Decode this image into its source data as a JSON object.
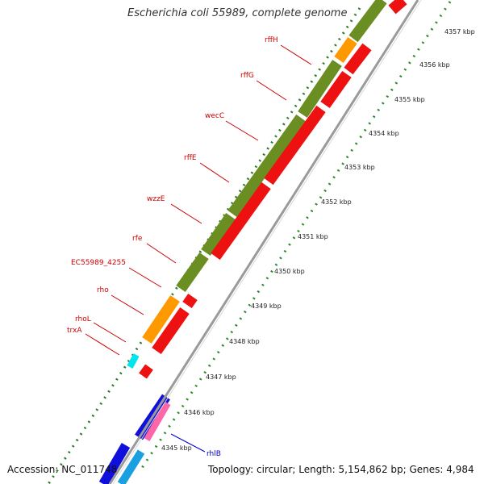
{
  "map": {
    "title": "Escherichia coli 55989, complete genome",
    "accession": "Accession: NC_011748",
    "summary": "Topology: circular; Length: 5,154,862 bp; Genes: 4,984"
  },
  "ruler": {
    "ticks": [
      {
        "label": "4357 kbp",
        "at": 0
      },
      {
        "label": "4356 kbp",
        "at": 1
      },
      {
        "label": "4355 kbp",
        "at": 2
      },
      {
        "label": "4354 kbp",
        "at": 3
      },
      {
        "label": "4353 kbp",
        "at": 4
      },
      {
        "label": "4352 kbp",
        "at": 5
      },
      {
        "label": "4351 kbp",
        "at": 6
      },
      {
        "label": "4350 kbp",
        "at": 7
      },
      {
        "label": "4349 kbp",
        "at": 8
      },
      {
        "label": "4348 kbp",
        "at": 9
      },
      {
        "label": "4347 kbp",
        "at": 10
      },
      {
        "label": "4346 kbp",
        "at": 11
      },
      {
        "label": "4345 kbp",
        "at": 12
      }
    ]
  },
  "genes": [
    {
      "name": "rffH",
      "color": "#cc0000"
    },
    {
      "name": "rffG",
      "color": "#cc0000"
    },
    {
      "name": "wecC",
      "color": "#cc0000"
    },
    {
      "name": "rffE",
      "color": "#cc0000"
    },
    {
      "name": "wzzE",
      "color": "#cc0000"
    },
    {
      "name": "rfe",
      "color": "#cc0000"
    },
    {
      "name": "EC55989_4255",
      "color": "#cc0000"
    },
    {
      "name": "rho",
      "color": "#cc0000"
    },
    {
      "name": "rhoL",
      "color": "#cc0000"
    },
    {
      "name": "trxA",
      "color": "#cc0000"
    },
    {
      "name": "rhlB",
      "color": "#0000cc"
    }
  ],
  "colors": {
    "cog_olive": "#6b8e23",
    "cds_red": "#ee1111",
    "cds_blue": "#1010dd",
    "orange": "#ff9900",
    "backbone": "#9a9a9a",
    "gc_dots": "#2a7a2a"
  }
}
